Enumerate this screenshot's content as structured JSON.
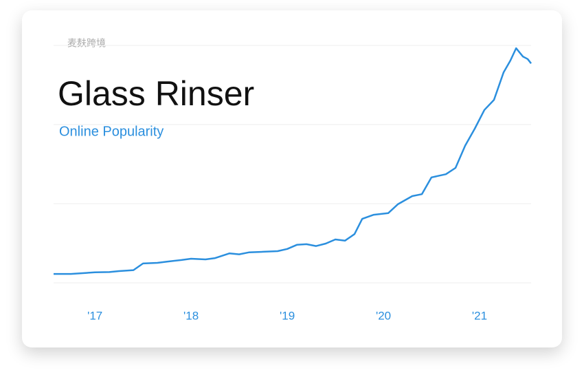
{
  "watermark": "麦麸跨境",
  "chart_data": {
    "type": "line",
    "title": "Glass Rinser",
    "subtitle": "Online Popularity",
    "x": [
      2016.57,
      2016.75,
      2016.9,
      2017.0,
      2017.15,
      2017.25,
      2017.4,
      2017.5,
      2017.65,
      2017.75,
      2017.9,
      2018.0,
      2018.15,
      2018.25,
      2018.4,
      2018.5,
      2018.6,
      2018.75,
      2018.9,
      2019.0,
      2019.1,
      2019.2,
      2019.3,
      2019.4,
      2019.5,
      2019.6,
      2019.7,
      2019.78,
      2019.9,
      2020.05,
      2020.15,
      2020.3,
      2020.4,
      2020.5,
      2020.65,
      2020.75,
      2020.85,
      2020.95,
      2021.05,
      2021.15,
      2021.25,
      2021.32,
      2021.38,
      2021.45,
      2021.5,
      2021.536
    ],
    "series": [
      {
        "name": "Glass Rinser",
        "color": "#2b8fde",
        "values": [
          2.8,
          2.8,
          3.1,
          3.3,
          3.4,
          3.7,
          4.0,
          6.1,
          6.3,
          6.7,
          7.2,
          7.6,
          7.4,
          7.8,
          9.3,
          9.0,
          9.6,
          9.8,
          10.0,
          10.7,
          12.0,
          12.2,
          11.6,
          12.4,
          13.7,
          13.3,
          15.4,
          20.2,
          21.5,
          22.0,
          24.8,
          27.4,
          28.0,
          33.3,
          34.3,
          36.3,
          43.3,
          48.7,
          54.6,
          57.8,
          66.5,
          70.2,
          74.1,
          71.5,
          70.7,
          69.3
        ]
      }
    ],
    "xlim": [
      2016.57,
      2021.536
    ],
    "xticks": [
      {
        "value": 2017,
        "label": "'17"
      },
      {
        "value": 2018,
        "label": "'18"
      },
      {
        "value": 2019,
        "label": "'19"
      },
      {
        "value": 2020,
        "label": "'20"
      },
      {
        "value": 2021,
        "label": "'21"
      }
    ],
    "ylim": [
      0,
      75
    ],
    "yticks": [
      0,
      25,
      50,
      75
    ],
    "grid": true
  }
}
